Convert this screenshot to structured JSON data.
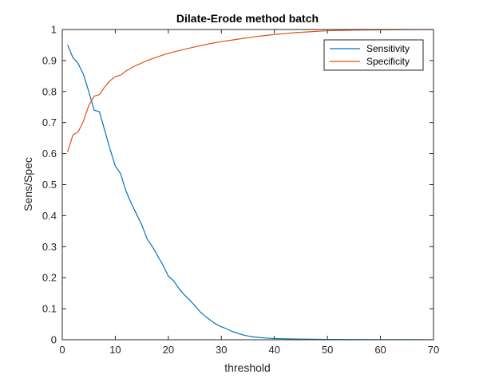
{
  "chart_data": {
    "type": "line",
    "title": "Dilate-Erode method batch",
    "xlabel": "threshold",
    "ylabel": "Sens/Spec",
    "xlim": [
      0,
      70
    ],
    "ylim": [
      0,
      1
    ],
    "xticks": [
      "0",
      "10",
      "20",
      "30",
      "40",
      "50",
      "60",
      "70"
    ],
    "yticks": [
      "0",
      "0.1",
      "0.2",
      "0.3",
      "0.4",
      "0.5",
      "0.6",
      "0.7",
      "0.8",
      "0.9",
      "1"
    ],
    "grid": false,
    "legend_position": "top-right",
    "series": [
      {
        "name": "Sensitivity",
        "color": "#0072BD",
        "x": [
          1,
          2,
          3,
          4,
          5,
          6,
          7,
          8,
          9,
          10,
          11,
          12,
          13,
          14,
          15,
          16,
          17,
          18,
          19,
          20,
          21,
          22,
          23,
          24,
          25,
          26,
          27,
          28,
          29,
          30,
          31,
          32,
          33,
          34,
          35,
          36,
          38,
          40,
          42,
          45,
          50,
          55,
          60,
          65,
          70
        ],
        "y": [
          0.95,
          0.91,
          0.89,
          0.855,
          0.8,
          0.74,
          0.735,
          0.675,
          0.615,
          0.56,
          0.535,
          0.48,
          0.44,
          0.405,
          0.37,
          0.325,
          0.3,
          0.27,
          0.24,
          0.205,
          0.19,
          0.165,
          0.145,
          0.128,
          0.11,
          0.09,
          0.075,
          0.062,
          0.05,
          0.042,
          0.035,
          0.027,
          0.021,
          0.016,
          0.012,
          0.009,
          0.006,
          0.004,
          0.003,
          0.002,
          0.001,
          0.0008,
          0.0005,
          0.0003,
          0.0002
        ]
      },
      {
        "name": "Specificity",
        "color": "#D95319",
        "x": [
          1,
          2,
          3,
          4,
          5,
          6,
          7,
          8,
          9,
          10,
          11,
          12,
          13,
          14,
          15,
          16,
          17,
          18,
          19,
          20,
          22,
          24,
          26,
          28,
          30,
          32,
          34,
          36,
          38,
          40,
          42,
          44,
          46,
          48,
          50,
          55,
          60,
          65,
          70
        ],
        "y": [
          0.605,
          0.66,
          0.67,
          0.705,
          0.755,
          0.785,
          0.79,
          0.815,
          0.835,
          0.848,
          0.853,
          0.866,
          0.876,
          0.885,
          0.892,
          0.9,
          0.906,
          0.912,
          0.918,
          0.923,
          0.932,
          0.94,
          0.948,
          0.955,
          0.961,
          0.966,
          0.971,
          0.976,
          0.98,
          0.984,
          0.987,
          0.99,
          0.992,
          0.994,
          0.996,
          0.998,
          0.999,
          0.9995,
          1.0
        ]
      }
    ]
  }
}
